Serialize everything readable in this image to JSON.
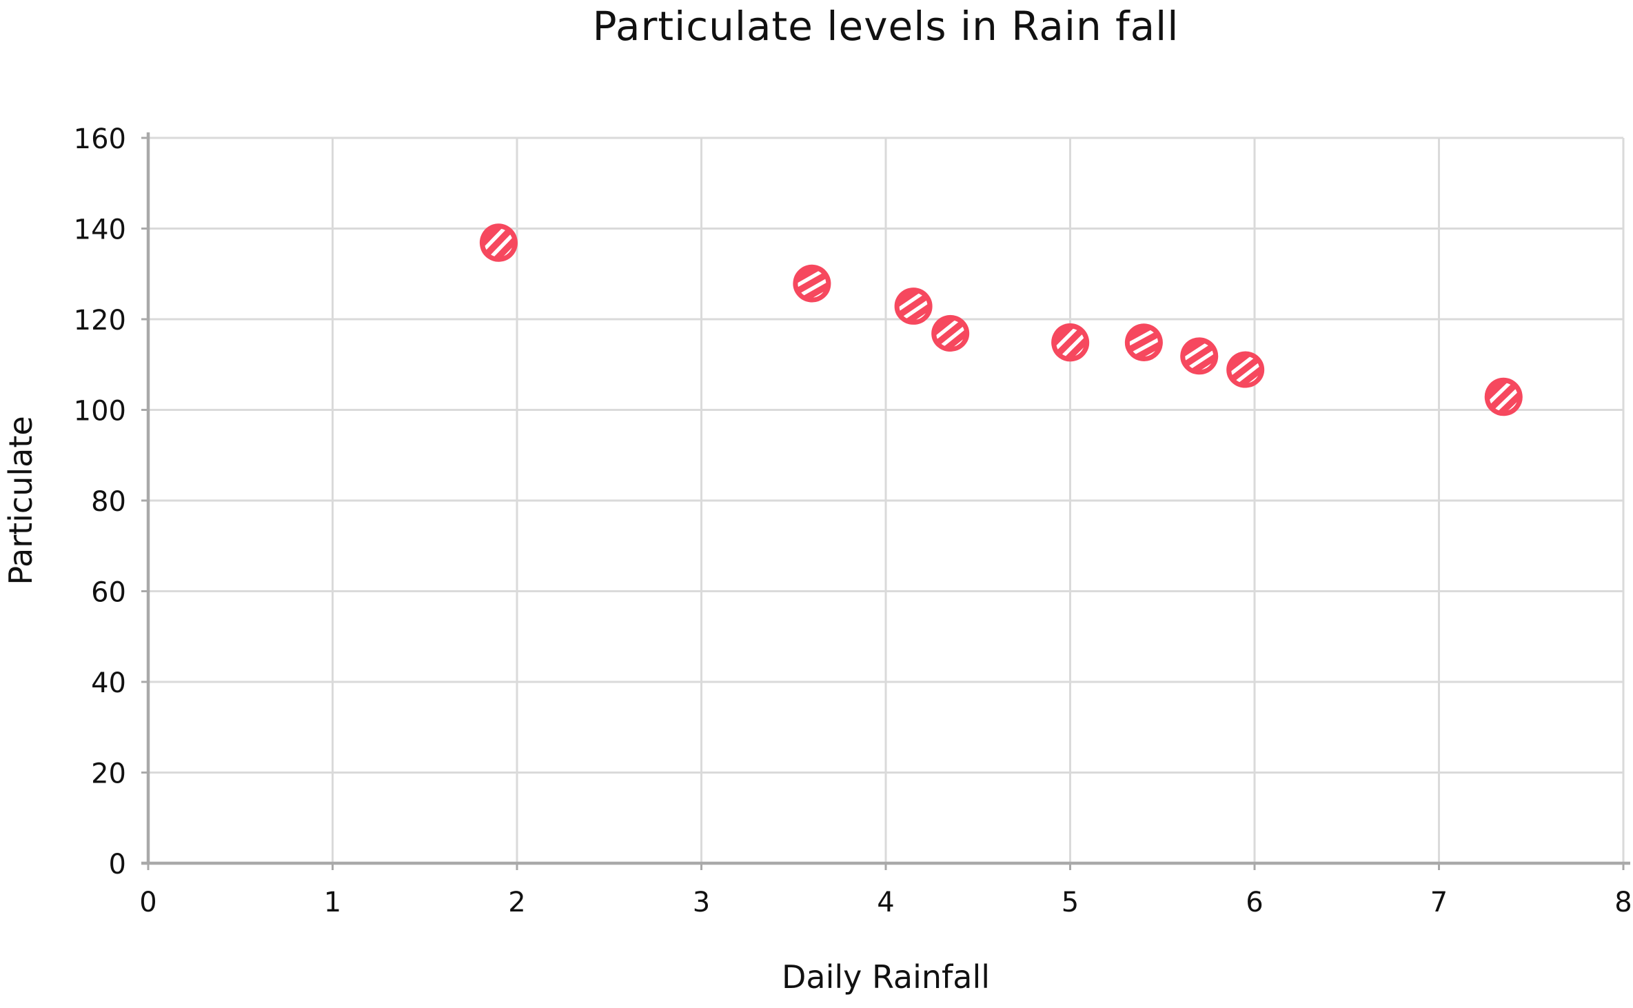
{
  "chart_data": {
    "type": "scatter",
    "title": "Particulate levels in Rain fall",
    "xlabel": "Daily Rainfall",
    "ylabel": "Particulate",
    "xlim": [
      0,
      8
    ],
    "ylim": [
      0,
      160
    ],
    "xticks": [
      0,
      1,
      2,
      3,
      4,
      5,
      6,
      7,
      8
    ],
    "yticks": [
      0,
      20,
      40,
      60,
      80,
      100,
      120,
      140,
      160
    ],
    "grid": true,
    "legend_position": "none",
    "series": [
      {
        "name": "Particulate",
        "marker": "scribbled-dot",
        "color": "#f6485e",
        "points": [
          {
            "x": 1.9,
            "y": 137
          },
          {
            "x": 3.6,
            "y": 128
          },
          {
            "x": 4.15,
            "y": 123
          },
          {
            "x": 4.35,
            "y": 117
          },
          {
            "x": 5.0,
            "y": 115
          },
          {
            "x": 5.4,
            "y": 115
          },
          {
            "x": 5.7,
            "y": 112
          },
          {
            "x": 5.95,
            "y": 109
          },
          {
            "x": 7.35,
            "y": 103
          }
        ]
      }
    ],
    "colors": {
      "background": "#ffffff",
      "grid": "#dadada",
      "axis": "#a9a9a9",
      "text": "#111111",
      "point": "#f6485e",
      "point_hatch": "#ffffff"
    }
  }
}
